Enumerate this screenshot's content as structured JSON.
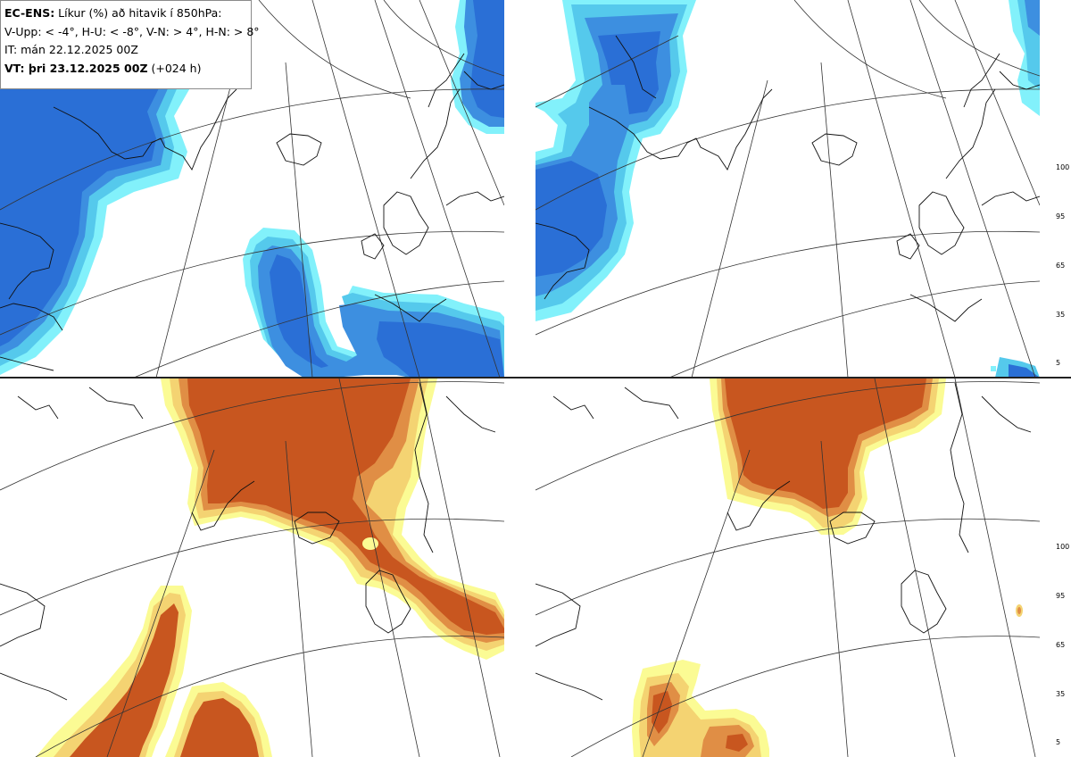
{
  "info_box": {
    "title_bold": "EC-ENS:",
    "title_rest": " Líkur (%) að hitavik í 850hPa:",
    "categories_line": "V-Upp: < -4°, H-U: < -8°, V-N: > 4°, H-N: > 8°",
    "initial_time": "IT: mán 22.12.2025 00Z",
    "valid_bold": "VT: þri 23.12.2025 00Z",
    "valid_rest": " (+024 h)"
  },
  "panels": [
    {
      "id": "top-left",
      "category": "V-Upp: < -4°",
      "palette": "blue"
    },
    {
      "id": "top-right",
      "category": "H-U: < -8°",
      "palette": "blue"
    },
    {
      "id": "bottom-left",
      "category": "V-N: > 4°",
      "palette": "orange"
    },
    {
      "id": "bottom-right",
      "category": "H-N: > 8°",
      "palette": "orange"
    }
  ],
  "colorbar": {
    "tick_labels": [
      "100",
      "95",
      "65",
      "35",
      "5"
    ],
    "blue_colors": [
      "#2a6fd6",
      "#3d8fe0",
      "#55c9ec",
      "#82f1fb"
    ],
    "orange_colors": [
      "#c8561f",
      "#e08e45",
      "#f4d372",
      "#fbfb94"
    ]
  }
}
